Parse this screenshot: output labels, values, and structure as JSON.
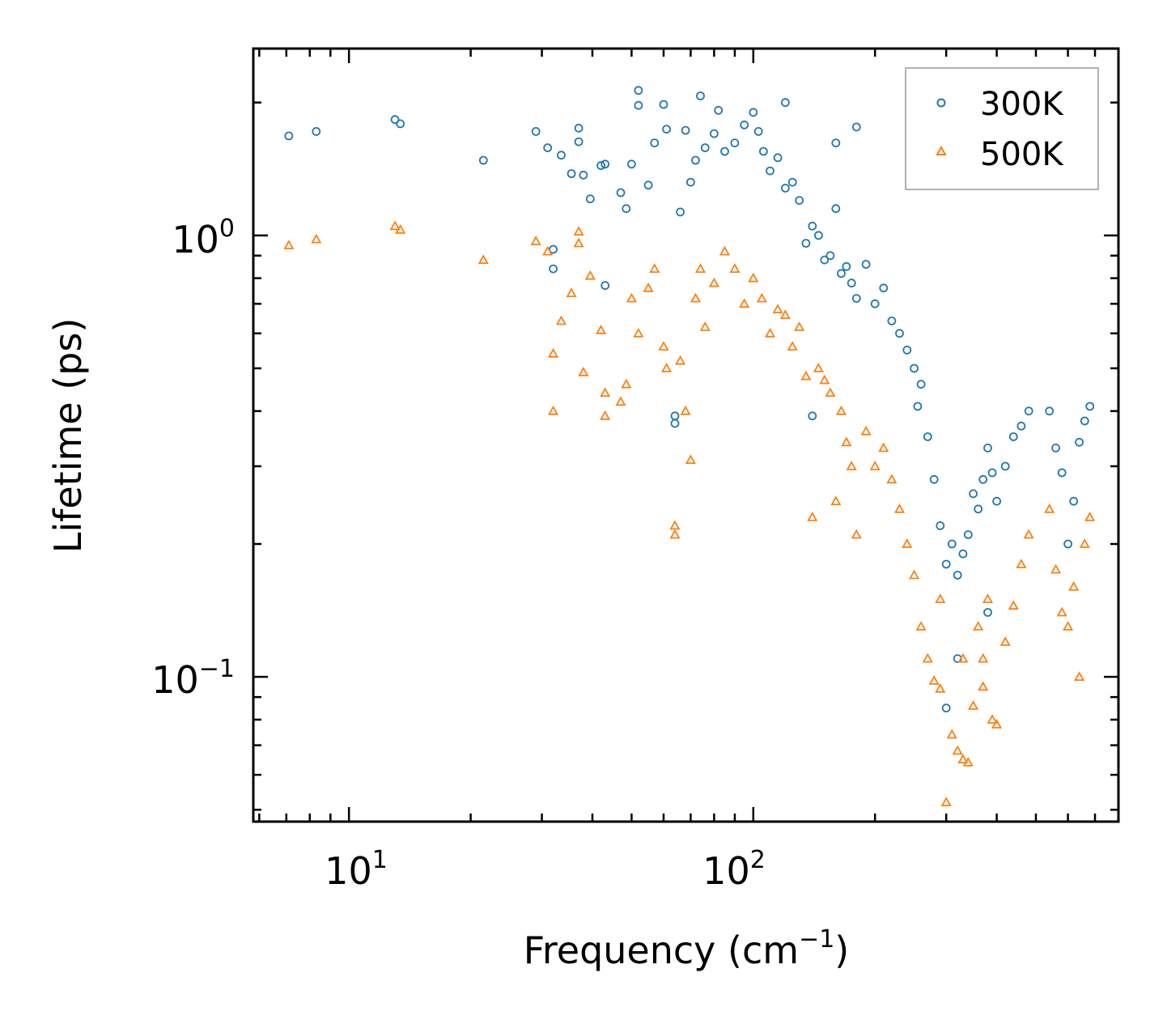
{
  "chart_data": {
    "type": "scatter",
    "title": "",
    "xlabel": "Frequency (cm",
    "xlabel_sup": "−1",
    "xlabel_suffix": ")",
    "ylabel": "Lifetime (ps)",
    "xscale": "log",
    "yscale": "log",
    "xlim": [
      5.8,
      800
    ],
    "ylim": [
      0.047,
      2.65
    ],
    "legend_position": "top-right",
    "x_ticks": [
      {
        "value": 10,
        "base": "10",
        "exp": "1"
      },
      {
        "value": 100,
        "base": "10",
        "exp": "2"
      }
    ],
    "y_ticks": [
      {
        "value": 1.0,
        "base": "10",
        "exp": "0"
      },
      {
        "value": 0.1,
        "base": "10",
        "exp": "−1"
      }
    ],
    "series": [
      {
        "name": "300K",
        "marker": "circle",
        "color": "#1f77b4",
        "points": [
          [
            7.1,
            1.68
          ],
          [
            8.3,
            1.72
          ],
          [
            13.0,
            1.83
          ],
          [
            13.4,
            1.79
          ],
          [
            21.5,
            1.48
          ],
          [
            29,
            1.72
          ],
          [
            31,
            1.58
          ],
          [
            32,
            0.93
          ],
          [
            32,
            0.84
          ],
          [
            33.5,
            1.52
          ],
          [
            35.5,
            1.38
          ],
          [
            37,
            1.75
          ],
          [
            37,
            1.63
          ],
          [
            38,
            1.37
          ],
          [
            39.5,
            1.21
          ],
          [
            42,
            1.44
          ],
          [
            43,
            1.45
          ],
          [
            43,
            0.77
          ],
          [
            47,
            1.25
          ],
          [
            48.5,
            1.15
          ],
          [
            50,
            1.45
          ],
          [
            52,
            2.13
          ],
          [
            52,
            1.97
          ],
          [
            55,
            1.3
          ],
          [
            57,
            1.62
          ],
          [
            60,
            1.98
          ],
          [
            61,
            1.74
          ],
          [
            64,
            0.39
          ],
          [
            64,
            0.375
          ],
          [
            66,
            1.13
          ],
          [
            68,
            1.73
          ],
          [
            70,
            1.32
          ],
          [
            72,
            1.48
          ],
          [
            74,
            2.07
          ],
          [
            76,
            1.58
          ],
          [
            80,
            1.7
          ],
          [
            82,
            1.92
          ],
          [
            85,
            1.55
          ],
          [
            90,
            1.62
          ],
          [
            95,
            1.78
          ],
          [
            100,
            1.9
          ],
          [
            103,
            1.72
          ],
          [
            106,
            1.55
          ],
          [
            110,
            1.4
          ],
          [
            115,
            1.5
          ],
          [
            120,
            1.28
          ],
          [
            125,
            1.32
          ],
          [
            130,
            1.2
          ],
          [
            135,
            0.96
          ],
          [
            140,
            1.05
          ],
          [
            145,
            1.0
          ],
          [
            150,
            0.88
          ],
          [
            155,
            0.9
          ],
          [
            160,
            1.15
          ],
          [
            165,
            0.82
          ],
          [
            170,
            0.85
          ],
          [
            175,
            0.78
          ],
          [
            180,
            0.72
          ],
          [
            190,
            0.86
          ],
          [
            200,
            0.7
          ],
          [
            210,
            0.76
          ],
          [
            220,
            0.64
          ],
          [
            230,
            0.6
          ],
          [
            240,
            0.55
          ],
          [
            250,
            0.5
          ],
          [
            255,
            0.41
          ],
          [
            260,
            0.46
          ],
          [
            270,
            0.35
          ],
          [
            280,
            0.28
          ],
          [
            290,
            0.22
          ],
          [
            300,
            0.18
          ],
          [
            310,
            0.2
          ],
          [
            320,
            0.17
          ],
          [
            330,
            0.19
          ],
          [
            340,
            0.21
          ],
          [
            350,
            0.26
          ],
          [
            360,
            0.24
          ],
          [
            370,
            0.28
          ],
          [
            380,
            0.33
          ],
          [
            390,
            0.29
          ],
          [
            400,
            0.25
          ],
          [
            420,
            0.3
          ],
          [
            440,
            0.35
          ],
          [
            460,
            0.37
          ],
          [
            480,
            0.4
          ],
          [
            540,
            0.4
          ],
          [
            560,
            0.33
          ],
          [
            580,
            0.29
          ],
          [
            600,
            0.2
          ],
          [
            620,
            0.25
          ],
          [
            640,
            0.34
          ],
          [
            660,
            0.38
          ],
          [
            680,
            0.41
          ],
          [
            140,
            0.39
          ],
          [
            300,
            0.085
          ],
          [
            320,
            0.11
          ],
          [
            380,
            0.14
          ],
          [
            160,
            1.62
          ],
          [
            180,
            1.76
          ],
          [
            120,
            2.0
          ]
        ]
      },
      {
        "name": "500K",
        "marker": "triangle",
        "color": "#ff7f0e",
        "points": [
          [
            7.1,
            0.95
          ],
          [
            8.3,
            0.98
          ],
          [
            13.0,
            1.05
          ],
          [
            13.4,
            1.03
          ],
          [
            21.5,
            0.88
          ],
          [
            29,
            0.97
          ],
          [
            31,
            0.92
          ],
          [
            32,
            0.54
          ],
          [
            32,
            0.4
          ],
          [
            33.5,
            0.64
          ],
          [
            35.5,
            0.74
          ],
          [
            37,
            1.02
          ],
          [
            37,
            0.96
          ],
          [
            38,
            0.49
          ],
          [
            39.5,
            0.81
          ],
          [
            42,
            0.61
          ],
          [
            43,
            0.39
          ],
          [
            43,
            0.44
          ],
          [
            47,
            0.42
          ],
          [
            48.5,
            0.46
          ],
          [
            50,
            0.72
          ],
          [
            52,
            0.6
          ],
          [
            55,
            0.76
          ],
          [
            57,
            0.84
          ],
          [
            60,
            0.56
          ],
          [
            61,
            0.5
          ],
          [
            64,
            0.22
          ],
          [
            64,
            0.21
          ],
          [
            66,
            0.52
          ],
          [
            68,
            0.4
          ],
          [
            70,
            0.31
          ],
          [
            72,
            0.72
          ],
          [
            74,
            0.84
          ],
          [
            76,
            0.62
          ],
          [
            80,
            0.78
          ],
          [
            85,
            0.92
          ],
          [
            90,
            0.84
          ],
          [
            95,
            0.7
          ],
          [
            100,
            0.8
          ],
          [
            105,
            0.72
          ],
          [
            110,
            0.6
          ],
          [
            115,
            0.68
          ],
          [
            120,
            0.66
          ],
          [
            125,
            0.56
          ],
          [
            130,
            0.62
          ],
          [
            135,
            0.48
          ],
          [
            140,
            0.23
          ],
          [
            145,
            0.5
          ],
          [
            150,
            0.47
          ],
          [
            155,
            0.44
          ],
          [
            160,
            0.25
          ],
          [
            165,
            0.4
          ],
          [
            170,
            0.34
          ],
          [
            175,
            0.3
          ],
          [
            180,
            0.21
          ],
          [
            190,
            0.36
          ],
          [
            200,
            0.3
          ],
          [
            210,
            0.33
          ],
          [
            220,
            0.28
          ],
          [
            230,
            0.24
          ],
          [
            240,
            0.2
          ],
          [
            250,
            0.17
          ],
          [
            260,
            0.13
          ],
          [
            270,
            0.11
          ],
          [
            280,
            0.098
          ],
          [
            290,
            0.094
          ],
          [
            300,
            0.052
          ],
          [
            310,
            0.074
          ],
          [
            320,
            0.068
          ],
          [
            330,
            0.11
          ],
          [
            340,
            0.064
          ],
          [
            350,
            0.086
          ],
          [
            360,
            0.13
          ],
          [
            370,
            0.11
          ],
          [
            380,
            0.15
          ],
          [
            390,
            0.08
          ],
          [
            400,
            0.078
          ],
          [
            420,
            0.12
          ],
          [
            440,
            0.145
          ],
          [
            460,
            0.18
          ],
          [
            480,
            0.21
          ],
          [
            540,
            0.24
          ],
          [
            560,
            0.175
          ],
          [
            580,
            0.14
          ],
          [
            600,
            0.13
          ],
          [
            620,
            0.16
          ],
          [
            640,
            0.1
          ],
          [
            660,
            0.2
          ],
          [
            680,
            0.23
          ],
          [
            290,
            0.15
          ],
          [
            330,
            0.065
          ],
          [
            370,
            0.095
          ]
        ]
      }
    ]
  }
}
